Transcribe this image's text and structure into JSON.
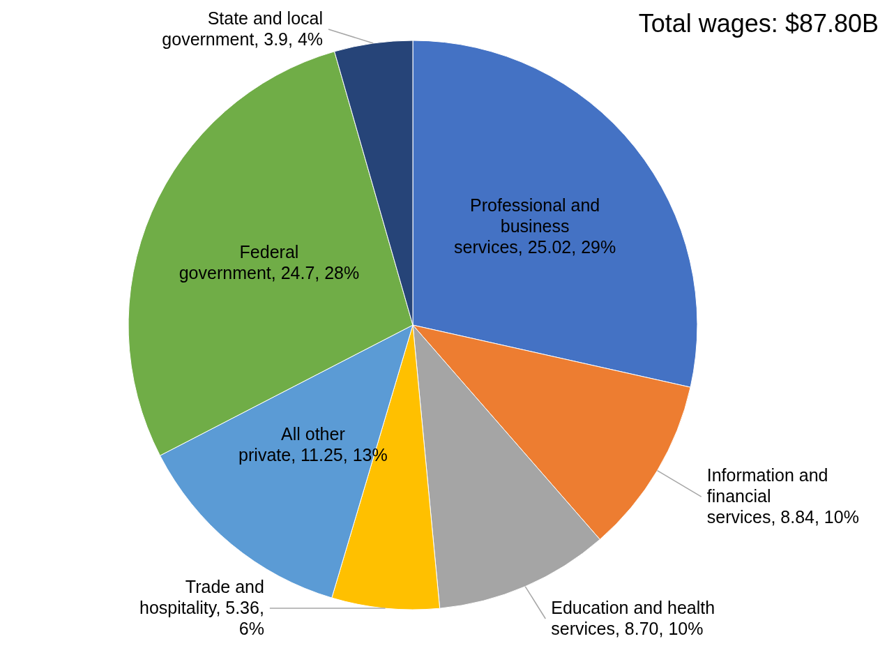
{
  "chart_data": {
    "type": "pie",
    "title": "Total wages: $87.80B",
    "categories": [
      "Professional and business services",
      "Information and financial services",
      "Education and health services",
      "Trade and hospitality",
      "All other private",
      "Federal government",
      "State and local government"
    ],
    "values": [
      25.02,
      8.84,
      8.7,
      5.36,
      11.25,
      24.7,
      3.9
    ],
    "colors": [
      "#4472c4",
      "#ed7d31",
      "#a5a5a5",
      "#ffc000",
      "#5b9bd5",
      "#70ad47",
      "#264478"
    ],
    "value_labels": [
      "25.02, 29%",
      "8.84, 10%",
      "8.70, 10%",
      "5.36, 6%",
      "11.25, 13%",
      "24.7, 28%",
      "3.9, 4%"
    ]
  }
}
